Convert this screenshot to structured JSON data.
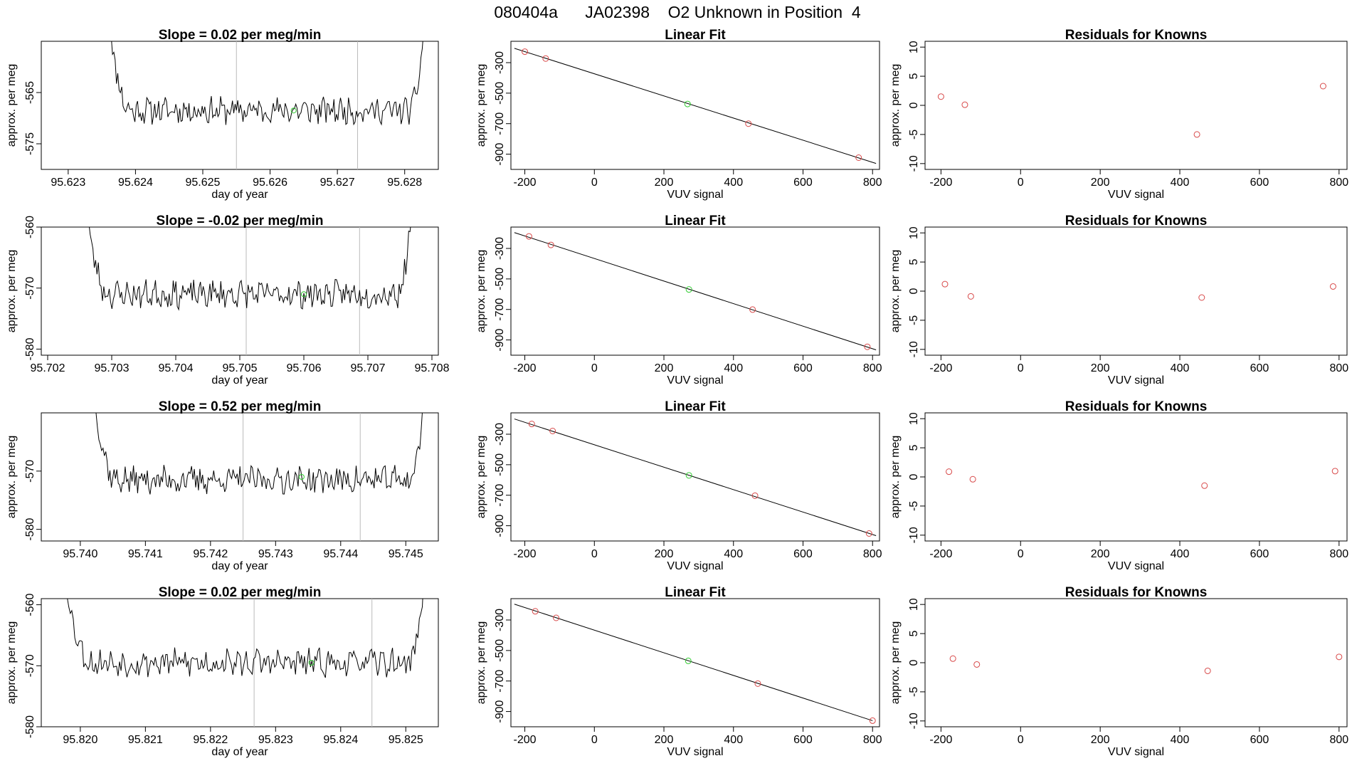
{
  "figure_title": "080404a      JA02398    O2 Unknown in Position  4",
  "colors": {
    "trace": "#000000",
    "known_point": "#d84a4a",
    "unknown_point": "#33cc33",
    "marker_line": "#bbbbbb",
    "fit_line": "#000000"
  },
  "rows": [
    {
      "timeseries": {
        "title": "Slope =  0.02  per meg/min",
        "xlabel": "day of year",
        "ylabel": "approx. per meg",
        "xlim": [
          95.6226,
          95.6285
        ],
        "ylim": [
          -580,
          -555
        ],
        "xticks": [
          "95.623",
          "95.624",
          "95.625",
          "95.626",
          "95.627",
          "95.628"
        ],
        "yticks": [
          "-565",
          "-575"
        ],
        "markers": [
          95.6255,
          95.6273
        ],
        "trace": {
          "x_start": 95.6236,
          "x_end": 95.6283,
          "baseline": -568.5,
          "noise": 2.2,
          "left_y": -550,
          "right_y": -551,
          "seed": 11
        },
        "unknown_point": {
          "x": 95.62635,
          "y": -568.5
        }
      },
      "linear_fit": {
        "title": "Linear Fit",
        "xlabel": "VUV signal",
        "ylabel": "approx. per meg",
        "xlim": [
          -240,
          820
        ],
        "ylim": [
          -1000,
          -160
        ],
        "xticks": [
          "-200",
          "0",
          "200",
          "400",
          "600",
          "800"
        ],
        "yticks": [
          "-300",
          "-500",
          "-700",
          "-900"
        ],
        "line": {
          "x": [
            -230,
            810
          ],
          "y": [
            -206,
            -961
          ]
        },
        "knowns": [
          {
            "x": -200,
            "y": -228
          },
          {
            "x": -140,
            "y": -273
          },
          {
            "x": 443,
            "y": -700
          },
          {
            "x": 760,
            "y": -923
          }
        ],
        "unknown": {
          "x": 268,
          "y": -571
        }
      },
      "residuals": {
        "title": "Residuals for Knowns",
        "xlabel": "VUV signal",
        "ylabel": "approx. per meg",
        "xlim": [
          -240,
          820
        ],
        "ylim": [
          -11,
          11
        ],
        "xticks": [
          "-200",
          "0",
          "200",
          "400",
          "600",
          "800"
        ],
        "yticks": [
          "10",
          "5",
          "0",
          "-5",
          "-10"
        ],
        "points": [
          {
            "x": -200,
            "y": 1.5
          },
          {
            "x": -140,
            "y": 0.1
          },
          {
            "x": 443,
            "y": -5.0
          },
          {
            "x": 760,
            "y": 3.3
          }
        ]
      }
    },
    {
      "timeseries": {
        "title": "Slope =  -0.02  per meg/min",
        "xlabel": "day of year",
        "ylabel": "approx. per meg",
        "xlim": [
          95.7019,
          95.7081
        ],
        "ylim": [
          -581,
          -560
        ],
        "xticks": [
          "95.702",
          "95.703",
          "95.704",
          "95.705",
          "95.706",
          "95.707",
          "95.708"
        ],
        "yticks": [
          "-560",
          "-570",
          "-580"
        ],
        "markers": [
          95.7051,
          95.70687
        ],
        "trace": {
          "x_start": 95.7026,
          "x_end": 95.7077,
          "baseline": -571,
          "noise": 1.9,
          "left_y": -557,
          "right_y": -555,
          "seed": 23
        },
        "unknown_point": {
          "x": 95.706,
          "y": -571
        }
      },
      "linear_fit": {
        "title": "Linear Fit",
        "xlabel": "VUV signal",
        "ylabel": "approx. per meg",
        "xlim": [
          -240,
          820
        ],
        "ylim": [
          -1000,
          -160
        ],
        "xticks": [
          "-200",
          "0",
          "200",
          "400",
          "600",
          "800"
        ],
        "yticks": [
          "-300",
          "-500",
          "-700",
          "-900"
        ],
        "line": {
          "x": [
            -230,
            810
          ],
          "y": [
            -196,
            -965
          ]
        },
        "knowns": [
          {
            "x": -188,
            "y": -221
          },
          {
            "x": -125,
            "y": -277
          },
          {
            "x": 455,
            "y": -701
          },
          {
            "x": 785,
            "y": -945
          }
        ],
        "unknown": {
          "x": 272,
          "y": -569
        }
      },
      "residuals": {
        "title": "Residuals for Knowns",
        "xlabel": "VUV signal",
        "ylabel": "approx. per meg",
        "xlim": [
          -240,
          820
        ],
        "ylim": [
          -11,
          11
        ],
        "xticks": [
          "-200",
          "0",
          "200",
          "400",
          "600",
          "800"
        ],
        "yticks": [
          "10",
          "5",
          "0",
          "-5",
          "-10"
        ],
        "points": [
          {
            "x": -190,
            "y": 1.2
          },
          {
            "x": -125,
            "y": -0.9
          },
          {
            "x": 455,
            "y": -1.1
          },
          {
            "x": 785,
            "y": 0.8
          }
        ]
      }
    },
    {
      "timeseries": {
        "title": "Slope =  0.52  per meg/min",
        "xlabel": "day of year",
        "ylabel": "approx. per meg",
        "xlim": [
          95.7394,
          95.7455
        ],
        "ylim": [
          -582,
          -560
        ],
        "xticks": [
          "95.740",
          "95.741",
          "95.742",
          "95.743",
          "95.744",
          "95.745"
        ],
        "yticks": [
          "-570",
          "-580"
        ],
        "markers": [
          95.7425,
          95.7443
        ],
        "trace": {
          "x_start": 95.7402,
          "x_end": 95.7453,
          "baseline": -571.5,
          "noise": 2.0,
          "left_y": -556,
          "right_y": -556,
          "seed": 37
        },
        "unknown_point": {
          "x": 95.7434,
          "y": -571
        }
      },
      "linear_fit": {
        "title": "Linear Fit",
        "xlabel": "VUV signal",
        "ylabel": "approx. per meg",
        "xlim": [
          -240,
          820
        ],
        "ylim": [
          -1000,
          -160
        ],
        "xticks": [
          "-200",
          "0",
          "200",
          "400",
          "600",
          "800"
        ],
        "yticks": [
          "-300",
          "-500",
          "-700",
          "-900"
        ],
        "line": {
          "x": [
            -230,
            810
          ],
          "y": [
            -200,
            -965
          ]
        },
        "knowns": [
          {
            "x": -180,
            "y": -233
          },
          {
            "x": -120,
            "y": -279
          },
          {
            "x": 462,
            "y": -703
          },
          {
            "x": 790,
            "y": -951
          }
        ],
        "unknown": {
          "x": 272,
          "y": -570
        }
      },
      "residuals": {
        "title": "Residuals for Knowns",
        "xlabel": "VUV signal",
        "ylabel": "approx. per meg",
        "xlim": [
          -240,
          820
        ],
        "ylim": [
          -11,
          11
        ],
        "xticks": [
          "-200",
          "0",
          "200",
          "400",
          "600",
          "800"
        ],
        "yticks": [
          "10",
          "5",
          "0",
          "-5",
          "-10"
        ],
        "points": [
          {
            "x": -180,
            "y": 0.9
          },
          {
            "x": -120,
            "y": -0.4
          },
          {
            "x": 462,
            "y": -1.5
          },
          {
            "x": 790,
            "y": 1.0
          }
        ]
      }
    },
    {
      "timeseries": {
        "title": "Slope =  0.02  per meg/min",
        "xlabel": "day of year",
        "ylabel": "approx. per meg",
        "xlim": [
          95.8194,
          95.8255
        ],
        "ylim": [
          -580,
          -559
        ],
        "xticks": [
          "95.820",
          "95.821",
          "95.822",
          "95.823",
          "95.824",
          "95.825"
        ],
        "yticks": [
          "-560",
          "-570",
          "-580"
        ],
        "markers": [
          95.82267,
          95.82448
        ],
        "trace": {
          "x_start": 95.8198,
          "x_end": 95.8253,
          "baseline": -569.5,
          "noise": 1.9,
          "left_y": -558,
          "right_y": -555,
          "seed": 53
        },
        "unknown_point": {
          "x": 95.82355,
          "y": -569.5
        }
      },
      "linear_fit": {
        "title": "Linear Fit",
        "xlabel": "VUV signal",
        "ylabel": "approx. per meg",
        "xlim": [
          -240,
          820
        ],
        "ylim": [
          -1000,
          -160
        ],
        "xticks": [
          "-200",
          "0",
          "200",
          "400",
          "600",
          "800"
        ],
        "yticks": [
          "-300",
          "-500",
          "-700",
          "-900"
        ],
        "line": {
          "x": [
            -230,
            800
          ],
          "y": [
            -196,
            -960
          ]
        },
        "knowns": [
          {
            "x": -170,
            "y": -243
          },
          {
            "x": -110,
            "y": -286
          },
          {
            "x": 470,
            "y": -717
          },
          {
            "x": 800,
            "y": -960
          }
        ],
        "unknown": {
          "x": 270,
          "y": -568
        }
      },
      "residuals": {
        "title": "Residuals for Knowns",
        "xlabel": "VUV signal",
        "ylabel": "approx. per meg",
        "xlim": [
          -240,
          820
        ],
        "ylim": [
          -11,
          11
        ],
        "xticks": [
          "-200",
          "0",
          "200",
          "400",
          "600",
          "800"
        ],
        "yticks": [
          "10",
          "5",
          "0",
          "-5",
          "-10"
        ],
        "points": [
          {
            "x": -170,
            "y": 0.7
          },
          {
            "x": -110,
            "y": -0.3
          },
          {
            "x": 470,
            "y": -1.4
          },
          {
            "x": 800,
            "y": 1.0
          }
        ]
      }
    }
  ]
}
